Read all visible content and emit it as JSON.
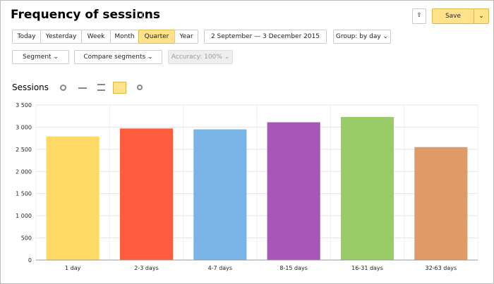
{
  "header": {
    "title": "Frequency of sessions",
    "save": "Save"
  },
  "periods": [
    "Today",
    "Yesterday",
    "Week",
    "Month",
    "Quarter",
    "Year"
  ],
  "date_range": "2 September — 3 December 2015",
  "group": "Group: by day",
  "segment": "Segment",
  "compare": "Compare segments",
  "accuracy": "Accuracy: 100%",
  "section_title": "Sessions",
  "chart_data": {
    "type": "bar",
    "categories": [
      "1 day",
      "2-3 days",
      "4-7 days",
      "8-15 days",
      "16-31 days",
      "32-63 days"
    ],
    "values": [
      2790,
      2970,
      2950,
      3110,
      3230,
      2550
    ],
    "colors": [
      "#ffd966",
      "#ff5b3f",
      "#78b4e6",
      "#a855b8",
      "#99cc66",
      "#de9b68"
    ],
    "ylim": [
      0,
      3500
    ],
    "yticks": [
      0,
      500,
      {
        "value": 1000,
        "label": "1 000"
      },
      {
        "value": 1500,
        "label": "1 500"
      },
      {
        "value": 2000,
        "label": "2 000"
      },
      {
        "value": 2500,
        "label": "2 500"
      },
      {
        "value": 3000,
        "label": "3 000"
      },
      {
        "value": 3500,
        "label": "3 500"
      }
    ],
    "grid": true
  }
}
